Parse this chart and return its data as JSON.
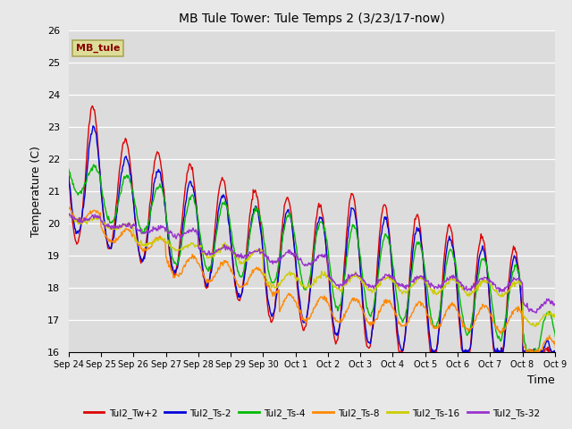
{
  "title": "MB Tule Tower: Tule Temps 2 (3/23/17-now)",
  "xlabel": "Time",
  "ylabel": "Temperature (C)",
  "ylim": [
    16.0,
    26.0
  ],
  "yticks": [
    16.0,
    17.0,
    18.0,
    19.0,
    20.0,
    21.0,
    22.0,
    23.0,
    24.0,
    25.0,
    26.0
  ],
  "bg_color": "#e8e8e8",
  "plot_bg_color": "#dcdcdc",
  "series_colors": {
    "Tul2_Tw+2": "#dd0000",
    "Tul2_Ts-2": "#0000dd",
    "Tul2_Ts-4": "#00bb00",
    "Tul2_Ts-8": "#ff8800",
    "Tul2_Ts-16": "#cccc00",
    "Tul2_Ts-32": "#9933cc"
  },
  "xtick_labels": [
    "Sep 24",
    "Sep 25",
    "Sep 26",
    "Sep 27",
    "Sep 28",
    "Sep 29",
    "Sep 30",
    "Oct 1",
    "Oct 2",
    "Oct 3",
    "Oct 4",
    "Oct 5",
    "Oct 6",
    "Oct 7",
    "Oct 8",
    "Oct 9"
  ],
  "mb_tule_box_color": "#dddd99",
  "mb_tule_text_color": "#880000",
  "linewidth": 1.0,
  "figsize": [
    6.4,
    4.8
  ],
  "dpi": 100
}
